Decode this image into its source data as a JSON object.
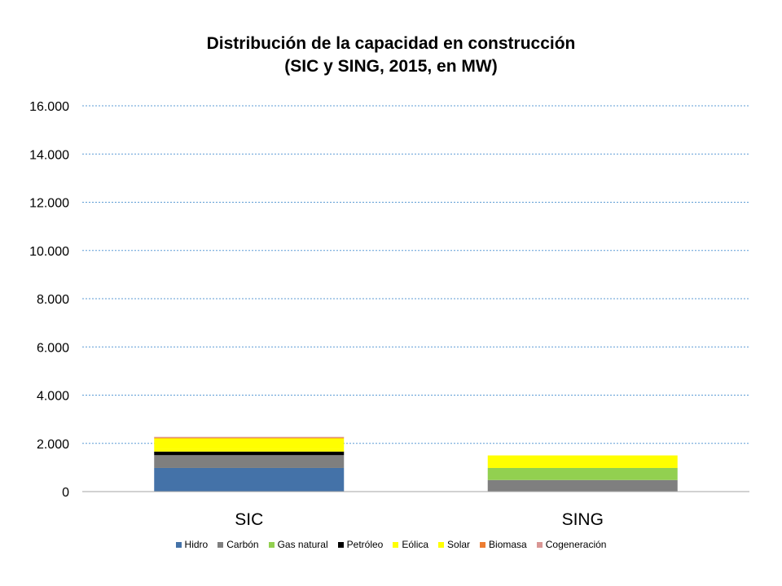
{
  "chart_data": {
    "type": "bar",
    "stacked": true,
    "title": [
      "Distribución de la capacidad en construcción",
      "(SIC y SING, 2015, en MW)"
    ],
    "xlabel": "",
    "ylabel": "",
    "categories": [
      "SIC",
      "SING"
    ],
    "ylim": [
      0,
      16000
    ],
    "yticks": [
      0,
      2000,
      4000,
      6000,
      8000,
      10000,
      12000,
      14000,
      16000
    ],
    "ytick_labels": [
      "0",
      "2.000",
      "4.000",
      "6.000",
      "8.000",
      "10.000",
      "12.000",
      "14.000",
      "16.000"
    ],
    "grid": true,
    "legend_position": "bottom",
    "series": [
      {
        "name": "Hidro",
        "color": "#4472A8",
        "values": [
          980,
          0
        ]
      },
      {
        "name": "Carbón",
        "color": "#7F7F7F",
        "values": [
          530,
          480
        ]
      },
      {
        "name": "Gas natural",
        "color": "#92D050",
        "values": [
          0,
          500
        ]
      },
      {
        "name": "Petróleo",
        "color": "#000000",
        "values": [
          150,
          0
        ]
      },
      {
        "name": "Eólica",
        "color": "#FFFF00",
        "values": [
          110,
          0
        ]
      },
      {
        "name": "Solar",
        "color": "#FFFF00",
        "values": [
          440,
          520
        ]
      },
      {
        "name": "Biomasa",
        "color": "#ED7D31",
        "values": [
          30,
          0
        ]
      },
      {
        "name": "Cogeneración",
        "color": "#D99694",
        "values": [
          30,
          0
        ]
      }
    ]
  }
}
